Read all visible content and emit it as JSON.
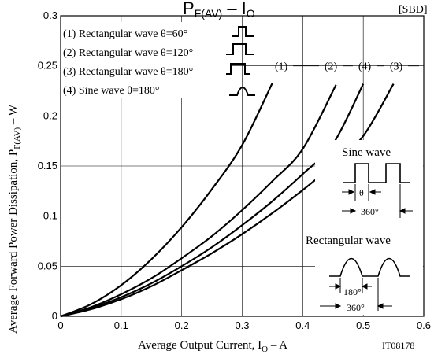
{
  "chart_data": {
    "type": "line",
    "title_main": "P",
    "title_sub": "F(AV)",
    "title_eq": " – I",
    "title_sub2": "O",
    "tag": "[SBD]",
    "figure_id": "IT08178",
    "xlabel": "Average Output Current, I",
    "xlabel_sub": "O",
    "xlabel_unit": " – A",
    "ylabel": "Average Forward Power Dissipation, P",
    "ylabel_sub": "F(AV)",
    "ylabel_unit": " – W",
    "xlim": [
      0,
      0.6
    ],
    "ylim": [
      0,
      0.3
    ],
    "x_ticks": [
      0,
      0.1,
      0.2,
      0.3,
      0.4,
      0.5,
      0.6
    ],
    "y_ticks": [
      0,
      0.05,
      0.1,
      0.15,
      0.2,
      0.25,
      0.3
    ],
    "x_tick_labels": [
      "0",
      "0.1",
      "0.2",
      "0.3",
      "0.4",
      "0.5",
      "0.6"
    ],
    "y_tick_labels": [
      "0",
      "0.05",
      "0.1",
      "0.15",
      "0.2",
      "0.25",
      "0.3"
    ],
    "grid": true,
    "legend": [
      "(1) Rectangular wave θ=60°",
      "(2) Rectangular wave θ=120°",
      "(3) Rectangular wave θ=180°",
      "(4) Sine wave θ=180°"
    ],
    "series": [
      {
        "name": "(1)",
        "x": [
          0,
          0.05,
          0.1,
          0.15,
          0.2,
          0.25,
          0.3,
          0.35
        ],
        "y": [
          0,
          0.012,
          0.031,
          0.057,
          0.089,
          0.127,
          0.171,
          0.233
        ]
      },
      {
        "name": "(2)",
        "x": [
          0,
          0.05,
          0.1,
          0.15,
          0.2,
          0.25,
          0.3,
          0.35,
          0.4,
          0.455
        ],
        "y": [
          0,
          0.009,
          0.022,
          0.038,
          0.058,
          0.08,
          0.106,
          0.135,
          0.167,
          0.231
        ]
      },
      {
        "name": "(4)",
        "x": [
          0,
          0.05,
          0.1,
          0.15,
          0.2,
          0.25,
          0.3,
          0.35,
          0.4,
          0.45,
          0.5
        ],
        "y": [
          0,
          0.008,
          0.019,
          0.033,
          0.05,
          0.069,
          0.091,
          0.115,
          0.142,
          0.172,
          0.232
        ]
      },
      {
        "name": "(3)",
        "x": [
          0,
          0.05,
          0.1,
          0.15,
          0.2,
          0.25,
          0.3,
          0.35,
          0.4,
          0.45,
          0.5,
          0.55
        ],
        "y": [
          0,
          0.007,
          0.017,
          0.03,
          0.046,
          0.063,
          0.082,
          0.103,
          0.126,
          0.151,
          0.18,
          0.232
        ]
      }
    ],
    "series_label_order": [
      "(1)",
      "(2)",
      "(4)",
      "(3)"
    ],
    "inset_sine_title": "Sine wave",
    "inset_theta": "θ",
    "inset_360": "360°",
    "inset_rect_title": "Rectangular wave",
    "inset_180": "180°",
    "inset_360b": "360°"
  }
}
